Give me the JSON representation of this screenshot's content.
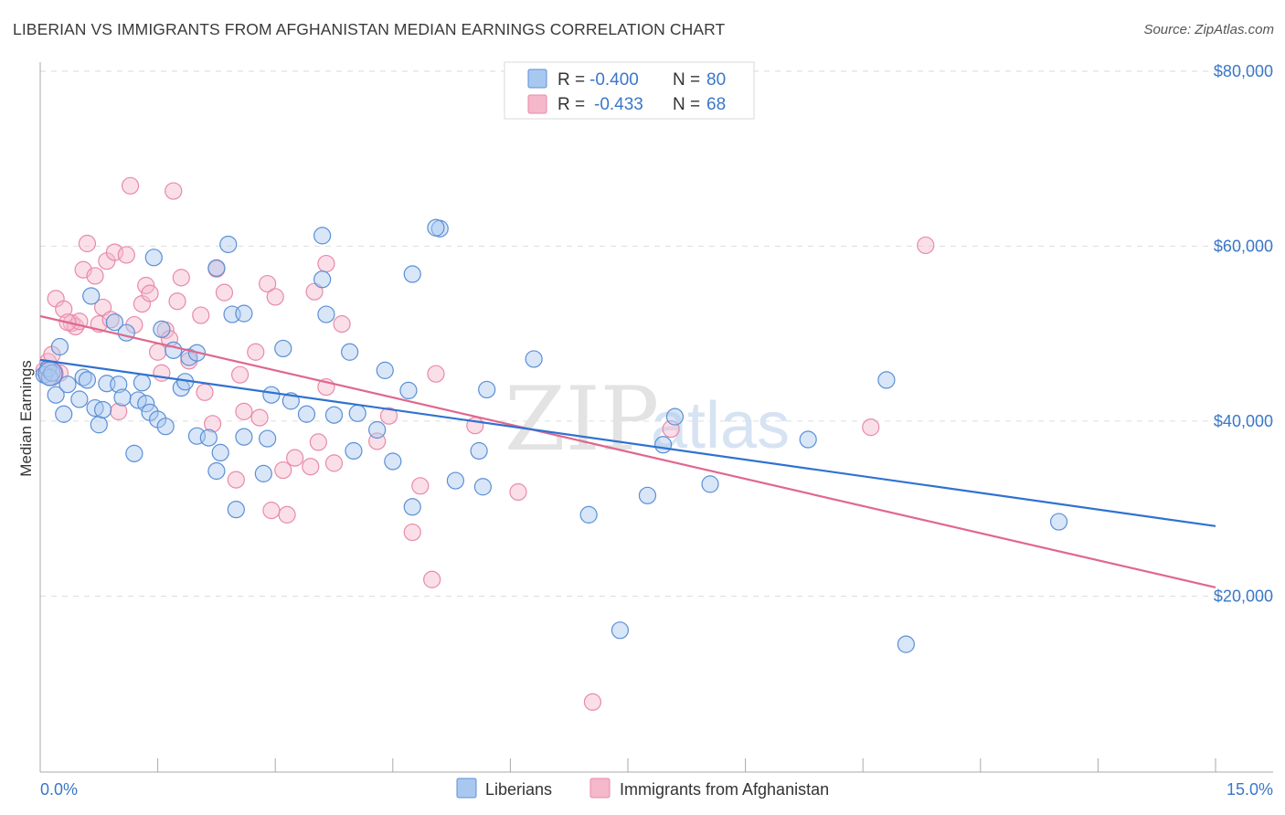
{
  "title": "LIBERIAN VS IMMIGRANTS FROM AFGHANISTAN MEDIAN EARNINGS CORRELATION CHART",
  "source": "Source: ZipAtlas.com",
  "watermark": {
    "zip": "ZIP",
    "atlas": "atlas"
  },
  "colors": {
    "blue_fill": "#a9c8f0",
    "blue_stroke": "#5b8fd6",
    "blue_line": "#2f72d0",
    "pink_fill": "#f5b8cb",
    "pink_stroke": "#e98aa8",
    "pink_line": "#e0678f",
    "accent_text": "#3a77c8",
    "grid": "#dddddd"
  },
  "legend": {
    "rows": [
      {
        "r_label": "R =",
        "r_value": "-0.400",
        "n_label": "N =",
        "n_value": "80"
      },
      {
        "r_label": "R =",
        "r_value": "-0.433",
        "n_label": "N =",
        "n_value": "68"
      }
    ]
  },
  "bottom_legend": [
    "Liberians",
    "Immigrants from Afghanistan"
  ],
  "chart_data": {
    "type": "scatter",
    "title": "LIBERIAN VS IMMIGRANTS FROM AFGHANISTAN MEDIAN EARNINGS CORRELATION CHART",
    "xlabel": "",
    "ylabel": "Median Earnings",
    "xlim": [
      0,
      15
    ],
    "ylim": [
      0,
      84000
    ],
    "x_tick_labels": [
      "0.0%",
      "15.0%"
    ],
    "y_ticks": [
      20000,
      40000,
      60000,
      80000
    ],
    "y_tick_labels": [
      "$20,000",
      "$40,000",
      "$60,000",
      "$80,000"
    ],
    "grid": true,
    "legend_placement": "top-center",
    "series": [
      {
        "name": "Liberians",
        "R": -0.4,
        "N": 80,
        "trend": {
          "x": [
            0,
            15
          ],
          "y": [
            47000,
            28000
          ]
        },
        "points": [
          {
            "x": 0.05,
            "y": 45300
          },
          {
            "x": 0.1,
            "y": 46000
          },
          {
            "x": 0.12,
            "y": 45000
          },
          {
            "x": 0.15,
            "y": 45500
          },
          {
            "x": 0.2,
            "y": 43000
          },
          {
            "x": 0.25,
            "y": 48500
          },
          {
            "x": 0.3,
            "y": 40800
          },
          {
            "x": 0.35,
            "y": 44200
          },
          {
            "x": 0.5,
            "y": 42500
          },
          {
            "x": 0.55,
            "y": 45000
          },
          {
            "x": 0.6,
            "y": 44700
          },
          {
            "x": 0.65,
            "y": 54300
          },
          {
            "x": 0.7,
            "y": 41500
          },
          {
            "x": 0.75,
            "y": 39600
          },
          {
            "x": 0.8,
            "y": 41300
          },
          {
            "x": 0.85,
            "y": 44300
          },
          {
            "x": 0.95,
            "y": 51300
          },
          {
            "x": 1.0,
            "y": 44200
          },
          {
            "x": 1.05,
            "y": 42700
          },
          {
            "x": 1.1,
            "y": 50100
          },
          {
            "x": 1.2,
            "y": 36300
          },
          {
            "x": 1.25,
            "y": 42400
          },
          {
            "x": 1.3,
            "y": 44400
          },
          {
            "x": 1.35,
            "y": 42000
          },
          {
            "x": 1.4,
            "y": 41000
          },
          {
            "x": 1.45,
            "y": 58700
          },
          {
            "x": 1.5,
            "y": 40200
          },
          {
            "x": 1.55,
            "y": 50500
          },
          {
            "x": 1.6,
            "y": 39400
          },
          {
            "x": 1.7,
            "y": 48100
          },
          {
            "x": 1.8,
            "y": 43800
          },
          {
            "x": 1.85,
            "y": 44500
          },
          {
            "x": 1.9,
            "y": 47300
          },
          {
            "x": 2.0,
            "y": 47800
          },
          {
            "x": 2.0,
            "y": 38300
          },
          {
            "x": 2.15,
            "y": 38100
          },
          {
            "x": 2.25,
            "y": 34300
          },
          {
            "x": 2.25,
            "y": 57500
          },
          {
            "x": 2.3,
            "y": 36400
          },
          {
            "x": 2.4,
            "y": 60200
          },
          {
            "x": 2.45,
            "y": 52200
          },
          {
            "x": 2.5,
            "y": 29900
          },
          {
            "x": 2.6,
            "y": 52300
          },
          {
            "x": 2.6,
            "y": 38200
          },
          {
            "x": 2.85,
            "y": 34000
          },
          {
            "x": 2.9,
            "y": 38000
          },
          {
            "x": 2.95,
            "y": 43000
          },
          {
            "x": 3.1,
            "y": 48300
          },
          {
            "x": 3.2,
            "y": 42300
          },
          {
            "x": 3.4,
            "y": 40800
          },
          {
            "x": 3.6,
            "y": 61200
          },
          {
            "x": 3.6,
            "y": 56200
          },
          {
            "x": 3.65,
            "y": 52200
          },
          {
            "x": 3.75,
            "y": 40700
          },
          {
            "x": 3.95,
            "y": 47900
          },
          {
            "x": 4.0,
            "y": 36600
          },
          {
            "x": 4.05,
            "y": 40900
          },
          {
            "x": 4.3,
            "y": 39000
          },
          {
            "x": 4.4,
            "y": 45800
          },
          {
            "x": 4.5,
            "y": 35400
          },
          {
            "x": 4.7,
            "y": 43500
          },
          {
            "x": 4.75,
            "y": 30200
          },
          {
            "x": 4.75,
            "y": 56800
          },
          {
            "x": 5.1,
            "y": 62000
          },
          {
            "x": 5.3,
            "y": 33200
          },
          {
            "x": 5.6,
            "y": 36600
          },
          {
            "x": 5.65,
            "y": 32500
          },
          {
            "x": 5.7,
            "y": 43600
          },
          {
            "x": 6.3,
            "y": 47100
          },
          {
            "x": 7.0,
            "y": 29300
          },
          {
            "x": 7.4,
            "y": 16100
          },
          {
            "x": 7.75,
            "y": 31500
          },
          {
            "x": 7.95,
            "y": 37300
          },
          {
            "x": 8.1,
            "y": 40500
          },
          {
            "x": 8.55,
            "y": 32800
          },
          {
            "x": 9.8,
            "y": 37900
          },
          {
            "x": 10.8,
            "y": 44700
          },
          {
            "x": 11.05,
            "y": 14500
          },
          {
            "x": 13.0,
            "y": 28500
          },
          {
            "x": 5.05,
            "y": 62100
          }
        ]
      },
      {
        "name": "Immigrants from Afghanistan",
        "R": -0.433,
        "N": 68,
        "trend": {
          "x": [
            0,
            15
          ],
          "y": [
            52000,
            21000
          ]
        },
        "points": [
          {
            "x": 0.05,
            "y": 45800
          },
          {
            "x": 0.1,
            "y": 46800
          },
          {
            "x": 0.15,
            "y": 47600
          },
          {
            "x": 0.2,
            "y": 54000
          },
          {
            "x": 0.25,
            "y": 45500
          },
          {
            "x": 0.3,
            "y": 52800
          },
          {
            "x": 0.4,
            "y": 51200
          },
          {
            "x": 0.45,
            "y": 50800
          },
          {
            "x": 0.5,
            "y": 51400
          },
          {
            "x": 0.55,
            "y": 57300
          },
          {
            "x": 0.6,
            "y": 60300
          },
          {
            "x": 0.7,
            "y": 56600
          },
          {
            "x": 0.75,
            "y": 51100
          },
          {
            "x": 0.8,
            "y": 53000
          },
          {
            "x": 0.85,
            "y": 58300
          },
          {
            "x": 0.9,
            "y": 51600
          },
          {
            "x": 0.95,
            "y": 59300
          },
          {
            "x": 1.0,
            "y": 41100
          },
          {
            "x": 1.1,
            "y": 59000
          },
          {
            "x": 1.15,
            "y": 66900
          },
          {
            "x": 1.2,
            "y": 51000
          },
          {
            "x": 1.3,
            "y": 53400
          },
          {
            "x": 1.35,
            "y": 55500
          },
          {
            "x": 1.4,
            "y": 54600
          },
          {
            "x": 1.5,
            "y": 47900
          },
          {
            "x": 1.55,
            "y": 45500
          },
          {
            "x": 1.6,
            "y": 50400
          },
          {
            "x": 1.65,
            "y": 49400
          },
          {
            "x": 1.7,
            "y": 66300
          },
          {
            "x": 1.75,
            "y": 53700
          },
          {
            "x": 1.8,
            "y": 56400
          },
          {
            "x": 1.9,
            "y": 46900
          },
          {
            "x": 2.05,
            "y": 52100
          },
          {
            "x": 2.1,
            "y": 43300
          },
          {
            "x": 2.2,
            "y": 39700
          },
          {
            "x": 2.25,
            "y": 57400
          },
          {
            "x": 2.35,
            "y": 54700
          },
          {
            "x": 2.5,
            "y": 33300
          },
          {
            "x": 2.55,
            "y": 45300
          },
          {
            "x": 2.6,
            "y": 41100
          },
          {
            "x": 2.75,
            "y": 47900
          },
          {
            "x": 2.8,
            "y": 40400
          },
          {
            "x": 2.9,
            "y": 55700
          },
          {
            "x": 2.95,
            "y": 29800
          },
          {
            "x": 3.0,
            "y": 54200
          },
          {
            "x": 3.1,
            "y": 34400
          },
          {
            "x": 3.15,
            "y": 29300
          },
          {
            "x": 3.25,
            "y": 35800
          },
          {
            "x": 3.45,
            "y": 34800
          },
          {
            "x": 3.5,
            "y": 54800
          },
          {
            "x": 3.55,
            "y": 37600
          },
          {
            "x": 3.65,
            "y": 58000
          },
          {
            "x": 3.65,
            "y": 43900
          },
          {
            "x": 3.75,
            "y": 35200
          },
          {
            "x": 3.85,
            "y": 51100
          },
          {
            "x": 4.3,
            "y": 37700
          },
          {
            "x": 4.45,
            "y": 40600
          },
          {
            "x": 4.75,
            "y": 27300
          },
          {
            "x": 4.85,
            "y": 32600
          },
          {
            "x": 5.0,
            "y": 21900
          },
          {
            "x": 5.05,
            "y": 45400
          },
          {
            "x": 5.55,
            "y": 39500
          },
          {
            "x": 6.1,
            "y": 31900
          },
          {
            "x": 7.05,
            "y": 7900
          },
          {
            "x": 8.05,
            "y": 39100
          },
          {
            "x": 10.6,
            "y": 39300
          },
          {
            "x": 11.3,
            "y": 60100
          },
          {
            "x": 0.35,
            "y": 51300
          }
        ]
      }
    ]
  }
}
